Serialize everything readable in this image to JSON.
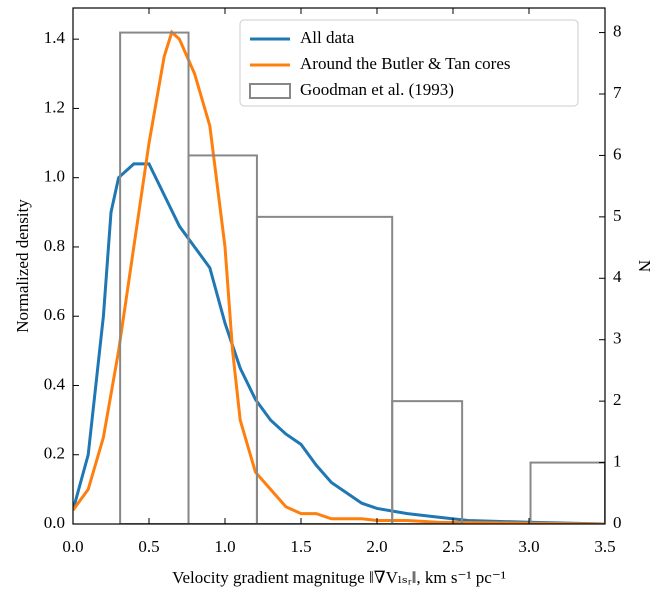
{
  "chart_data": {
    "type": "line",
    "xlabel": "Velocity gradient magnituge ‖∇Vₗₛᵣ‖, km s⁻¹ pc⁻¹",
    "ylabel": "Normalized density",
    "y2label": "N",
    "xlim": [
      0,
      3.5
    ],
    "xticks": [
      {
        "value": 0,
        "label": "0.0"
      },
      {
        "value": 0.5,
        "label": "0.5"
      },
      {
        "value": 1,
        "label": "1.0"
      },
      {
        "value": 1.5,
        "label": "1.5"
      },
      {
        "value": 2,
        "label": "2.0"
      },
      {
        "value": 2.5,
        "label": "2.5"
      },
      {
        "value": 3,
        "label": "3.0"
      },
      {
        "value": 3.5,
        "label": "3.5"
      }
    ],
    "ylim": [
      0,
      1.49
    ],
    "yticks": [
      {
        "value": 0,
        "label": "0.0"
      },
      {
        "value": 0.2,
        "label": "0.2"
      },
      {
        "value": 0.4,
        "label": "0.4"
      },
      {
        "value": 0.6,
        "label": "0.6"
      },
      {
        "value": 0.8,
        "label": "0.8"
      },
      {
        "value": 1,
        "label": "1.0"
      },
      {
        "value": 1.2,
        "label": "1.2"
      },
      {
        "value": 1.4,
        "label": "1.4"
      }
    ],
    "y2lim": [
      0,
      8.4
    ],
    "y2ticks": [
      0,
      1,
      2,
      3,
      4,
      5,
      6,
      7,
      8
    ],
    "legend": "upper right",
    "series": [
      {
        "name": "All data",
        "color": "#1f77b4",
        "x": [
          0,
          0.1,
          0.2,
          0.25,
          0.3,
          0.4,
          0.5,
          0.6,
          0.7,
          0.8,
          0.9,
          1.0,
          1.1,
          1.2,
          1.3,
          1.4,
          1.5,
          1.6,
          1.7,
          1.8,
          1.9,
          2.0,
          2.2,
          2.4,
          2.6,
          3.0,
          3.5
        ],
        "values": [
          0.04,
          0.2,
          0.6,
          0.9,
          1.0,
          1.04,
          1.04,
          0.95,
          0.86,
          0.8,
          0.74,
          0.58,
          0.45,
          0.36,
          0.3,
          0.26,
          0.23,
          0.17,
          0.12,
          0.09,
          0.06,
          0.045,
          0.03,
          0.02,
          0.01,
          0.005,
          0
        ]
      },
      {
        "name": "Around the Butler & Tan cores",
        "color": "#ff7f0e",
        "x": [
          0,
          0.1,
          0.2,
          0.3,
          0.4,
          0.5,
          0.6,
          0.65,
          0.7,
          0.8,
          0.9,
          1.0,
          1.05,
          1.1,
          1.2,
          1.3,
          1.4,
          1.5,
          1.6,
          1.7,
          1.9,
          2.0,
          2.2,
          2.4,
          3.5
        ],
        "values": [
          0.04,
          0.1,
          0.25,
          0.5,
          0.8,
          1.1,
          1.35,
          1.42,
          1.4,
          1.3,
          1.15,
          0.8,
          0.5,
          0.3,
          0.15,
          0.1,
          0.05,
          0.03,
          0.03,
          0.015,
          0.015,
          0.01,
          0.01,
          0.005,
          0
        ]
      },
      {
        "name": "Goodman et al. (1993)",
        "color": "#888888",
        "axis": "y2",
        "type": "histogram",
        "bins": [
          0.31,
          0.76,
          1.21,
          2.1,
          2.56,
          3.01,
          3.5
        ],
        "values": [
          8,
          6,
          5,
          2,
          0,
          1
        ]
      }
    ]
  }
}
